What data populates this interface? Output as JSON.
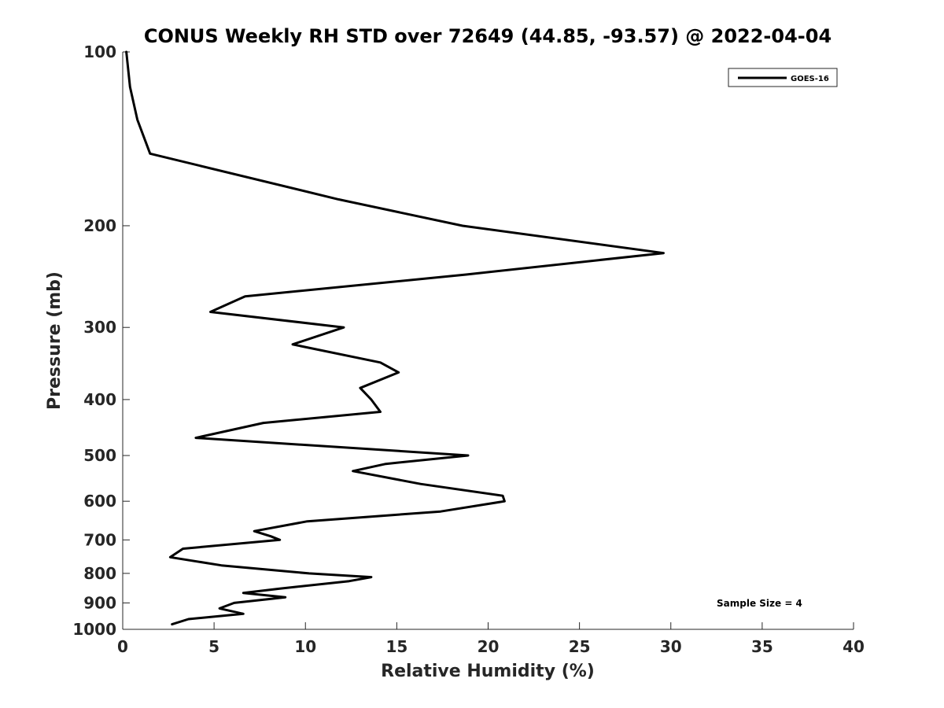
{
  "chart_data": {
    "type": "line",
    "title": "CONUS Weekly RH STD over 72649 (44.85, -93.57) @ 2022-04-04",
    "xlabel": "Relative Humidity (%)",
    "ylabel": "Pressure (mb)",
    "xlim": [
      0,
      40
    ],
    "ylim": [
      100,
      1000
    ],
    "yscale": "log",
    "yaxis_reversed": true,
    "x_ticks": [
      "0",
      "5",
      "10",
      "15",
      "20",
      "25",
      "30",
      "35",
      "40"
    ],
    "y_ticks": [
      "100",
      "200",
      "300",
      "400",
      "500",
      "600",
      "700",
      "800",
      "900",
      "1000"
    ],
    "legend": {
      "position": "top-right",
      "entries": [
        "GOES-16"
      ]
    },
    "annotation": "Sample Size = 4",
    "series": [
      {
        "name": "GOES-16",
        "color": "#000000",
        "points": [
          [
            0.2,
            100
          ],
          [
            0.4,
            115
          ],
          [
            0.8,
            131
          ],
          [
            1.5,
            150
          ],
          [
            11.8,
            180
          ],
          [
            18.6,
            200
          ],
          [
            29.6,
            223
          ],
          [
            18.8,
            243
          ],
          [
            6.7,
            265
          ],
          [
            4.8,
            282
          ],
          [
            12.1,
            300
          ],
          [
            9.3,
            321
          ],
          [
            14.1,
            345
          ],
          [
            15.1,
            359
          ],
          [
            13.0,
            382
          ],
          [
            13.6,
            400
          ],
          [
            14.1,
            420
          ],
          [
            7.7,
            439
          ],
          [
            4.0,
            466
          ],
          [
            18.9,
            500
          ],
          [
            14.4,
            517
          ],
          [
            12.6,
            532
          ],
          [
            16.3,
            560
          ],
          [
            20.8,
            587
          ],
          [
            20.9,
            600
          ],
          [
            17.4,
            625
          ],
          [
            10.1,
            650
          ],
          [
            7.2,
            676
          ],
          [
            8.1,
            690
          ],
          [
            8.6,
            700
          ],
          [
            3.3,
            725
          ],
          [
            2.6,
            750
          ],
          [
            5.4,
            775
          ],
          [
            10.2,
            800
          ],
          [
            13.6,
            812
          ],
          [
            12.4,
            825
          ],
          [
            8.6,
            850
          ],
          [
            6.6,
            865
          ],
          [
            8.9,
            880
          ],
          [
            6.1,
            900
          ],
          [
            5.3,
            920
          ],
          [
            6.6,
            940
          ],
          [
            3.6,
            960
          ],
          [
            2.7,
            980
          ]
        ]
      }
    ]
  }
}
